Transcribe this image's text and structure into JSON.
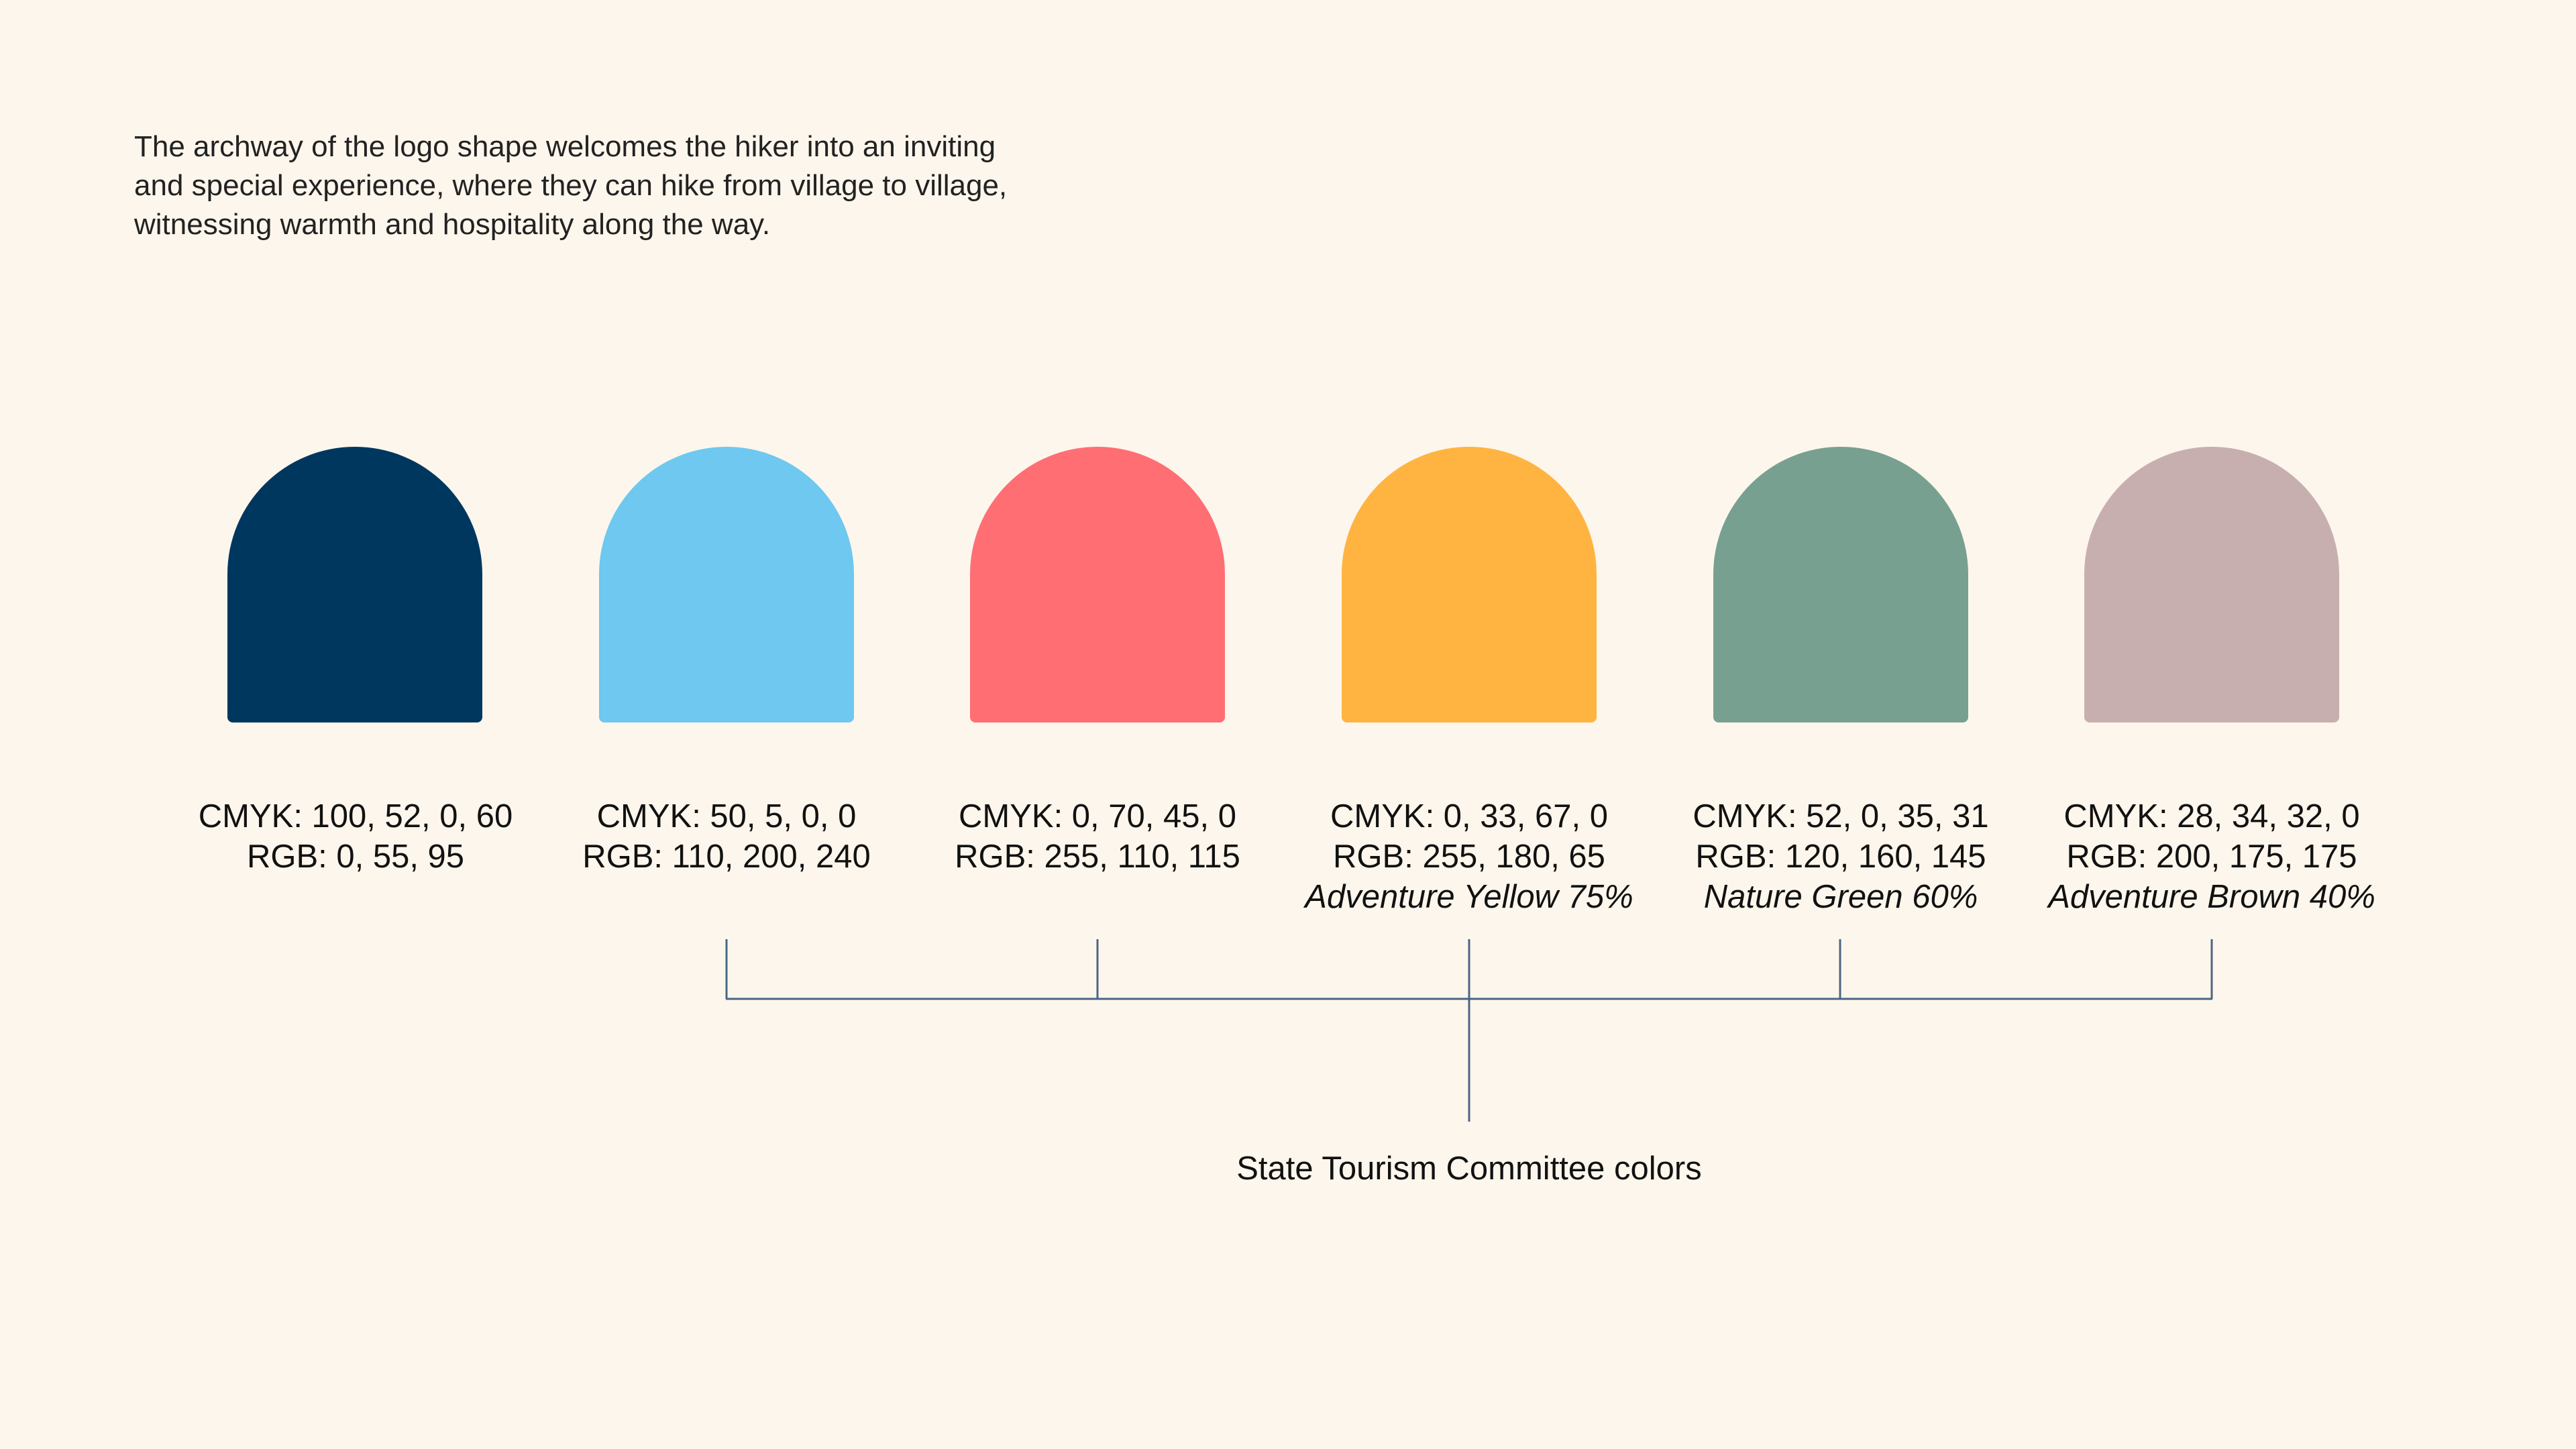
{
  "intro": {
    "lines": [
      "The archway of the logo shape welcomes the hiker into an inviting",
      "and special experience, where they can hike from village to village,",
      "witnessing warmth and hospitality along the way."
    ]
  },
  "colors": [
    {
      "hex": "#00375F",
      "cmyk": "CMYK: 100, 52, 0, 60",
      "rgb": "RGB: 0, 55, 95",
      "name": ""
    },
    {
      "hex": "#6EC8F0",
      "cmyk": "CMYK: 50, 5, 0, 0",
      "rgb": "RGB: 110, 200, 240",
      "name": ""
    },
    {
      "hex": "#FF6E73",
      "cmyk": "CMYK: 0, 70, 45, 0",
      "rgb": "RGB: 255, 110, 115",
      "name": ""
    },
    {
      "hex": "#FFB441",
      "cmyk": "CMYK: 0, 33, 67, 0",
      "rgb": "RGB: 255, 180, 65",
      "name": "Adventure Yellow 75%"
    },
    {
      "hex": "#78A091",
      "cmyk": "CMYK: 52, 0, 35, 31",
      "rgb": "RGB: 120, 160, 145",
      "name": "Nature Green 60%"
    },
    {
      "hex": "#C8AFAF",
      "cmyk": "CMYK: 28, 34, 32, 0",
      "rgb": "RGB: 200, 175, 175",
      "name": "Adventure Brown 40%"
    }
  ],
  "caption": "State Tourism Committee colors",
  "connector_color": "#4A6584"
}
